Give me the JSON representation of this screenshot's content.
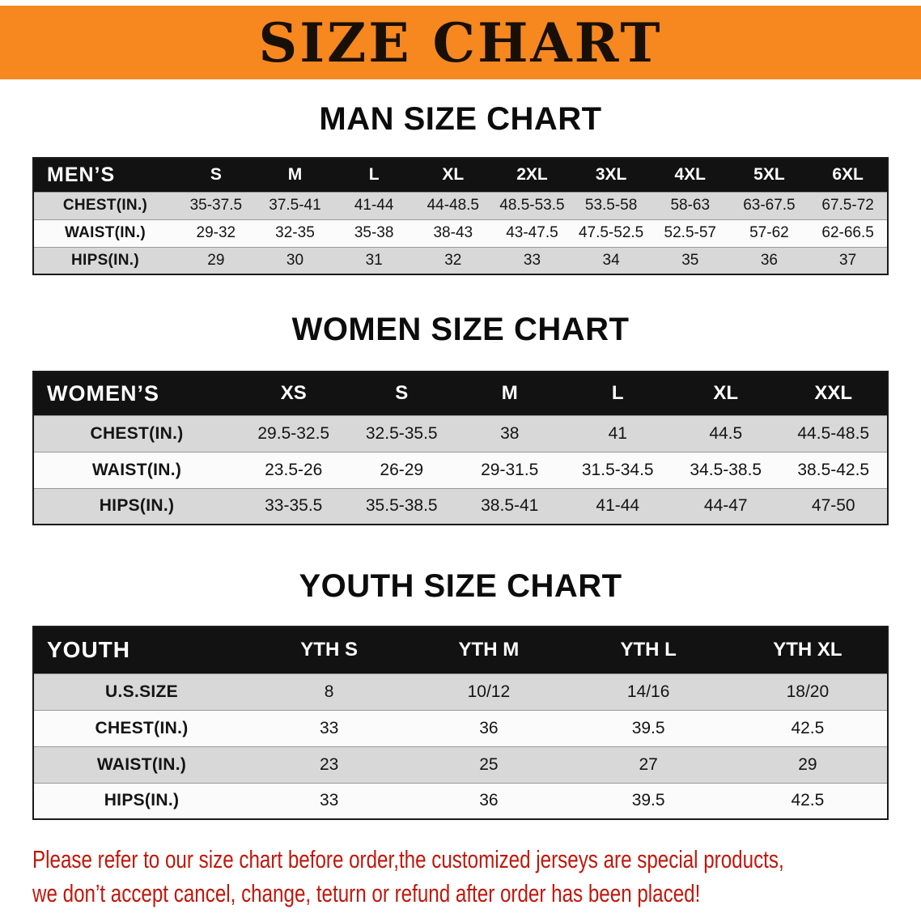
{
  "banner": {
    "title": "SIZE CHART",
    "bg_color": "#f6881f",
    "text_color": "#181007"
  },
  "chart_data": [
    {
      "type": "table",
      "title": "MAN SIZE CHART",
      "corner_label": "MEN’S",
      "columns": [
        "S",
        "M",
        "L",
        "XL",
        "2XL",
        "3XL",
        "4XL",
        "5XL",
        "6XL"
      ],
      "rows": [
        {
          "label": "CHEST(IN.)",
          "values": [
            "35-37.5",
            "37.5-41",
            "41-44",
            "44-48.5",
            "48.5-53.5",
            "53.5-58",
            "58-63",
            "63-67.5",
            "67.5-72"
          ]
        },
        {
          "label": "WAIST(IN.)",
          "values": [
            "29-32",
            "32-35",
            "35-38",
            "38-43",
            "43-47.5",
            "47.5-52.5",
            "52.5-57",
            "57-62",
            "62-66.5"
          ]
        },
        {
          "label": "HIPS(IN.)",
          "values": [
            "29",
            "30",
            "31",
            "32",
            "33",
            "34",
            "35",
            "36",
            "37"
          ]
        }
      ]
    },
    {
      "type": "table",
      "title": "WOMEN SIZE CHART",
      "corner_label": "WOMEN’S",
      "columns": [
        "XS",
        "S",
        "M",
        "L",
        "XL",
        "XXL"
      ],
      "rows": [
        {
          "label": "CHEST(IN.)",
          "values": [
            "29.5-32.5",
            "32.5-35.5",
            "38",
            "41",
            "44.5",
            "44.5-48.5"
          ]
        },
        {
          "label": "WAIST(IN.)",
          "values": [
            "23.5-26",
            "26-29",
            "29-31.5",
            "31.5-34.5",
            "34.5-38.5",
            "38.5-42.5"
          ]
        },
        {
          "label": "HIPS(IN.)",
          "values": [
            "33-35.5",
            "35.5-38.5",
            "38.5-41",
            "41-44",
            "44-47",
            "47-50"
          ]
        }
      ]
    },
    {
      "type": "table",
      "title": "YOUTH SIZE CHART",
      "corner_label": "YOUTH",
      "columns": [
        "YTH S",
        "YTH M",
        "YTH L",
        "YTH XL"
      ],
      "rows": [
        {
          "label": "U.S.SIZE",
          "values": [
            "8",
            "10/12",
            "14/16",
            "18/20"
          ]
        },
        {
          "label": "CHEST(IN.)",
          "values": [
            "33",
            "36",
            "39.5",
            "42.5"
          ]
        },
        {
          "label": "WAIST(IN.)",
          "values": [
            "23",
            "25",
            "27",
            "29"
          ]
        },
        {
          "label": "HIPS(IN.)",
          "values": [
            "33",
            "36",
            "39.5",
            "42.5"
          ]
        }
      ]
    }
  ],
  "disclaimer": {
    "line1": "Please refer to our size chart before order,the customized jerseys are special products,",
    "line2": "we don’t accept cancel, change, teturn or refund after order has been placed!",
    "color": "#c2170b"
  },
  "colors": {
    "table_header_bg": "#121212",
    "table_header_text": "#ffffff",
    "row_shade": "#d8d8d8",
    "row_plain": "#fbfbfb"
  }
}
